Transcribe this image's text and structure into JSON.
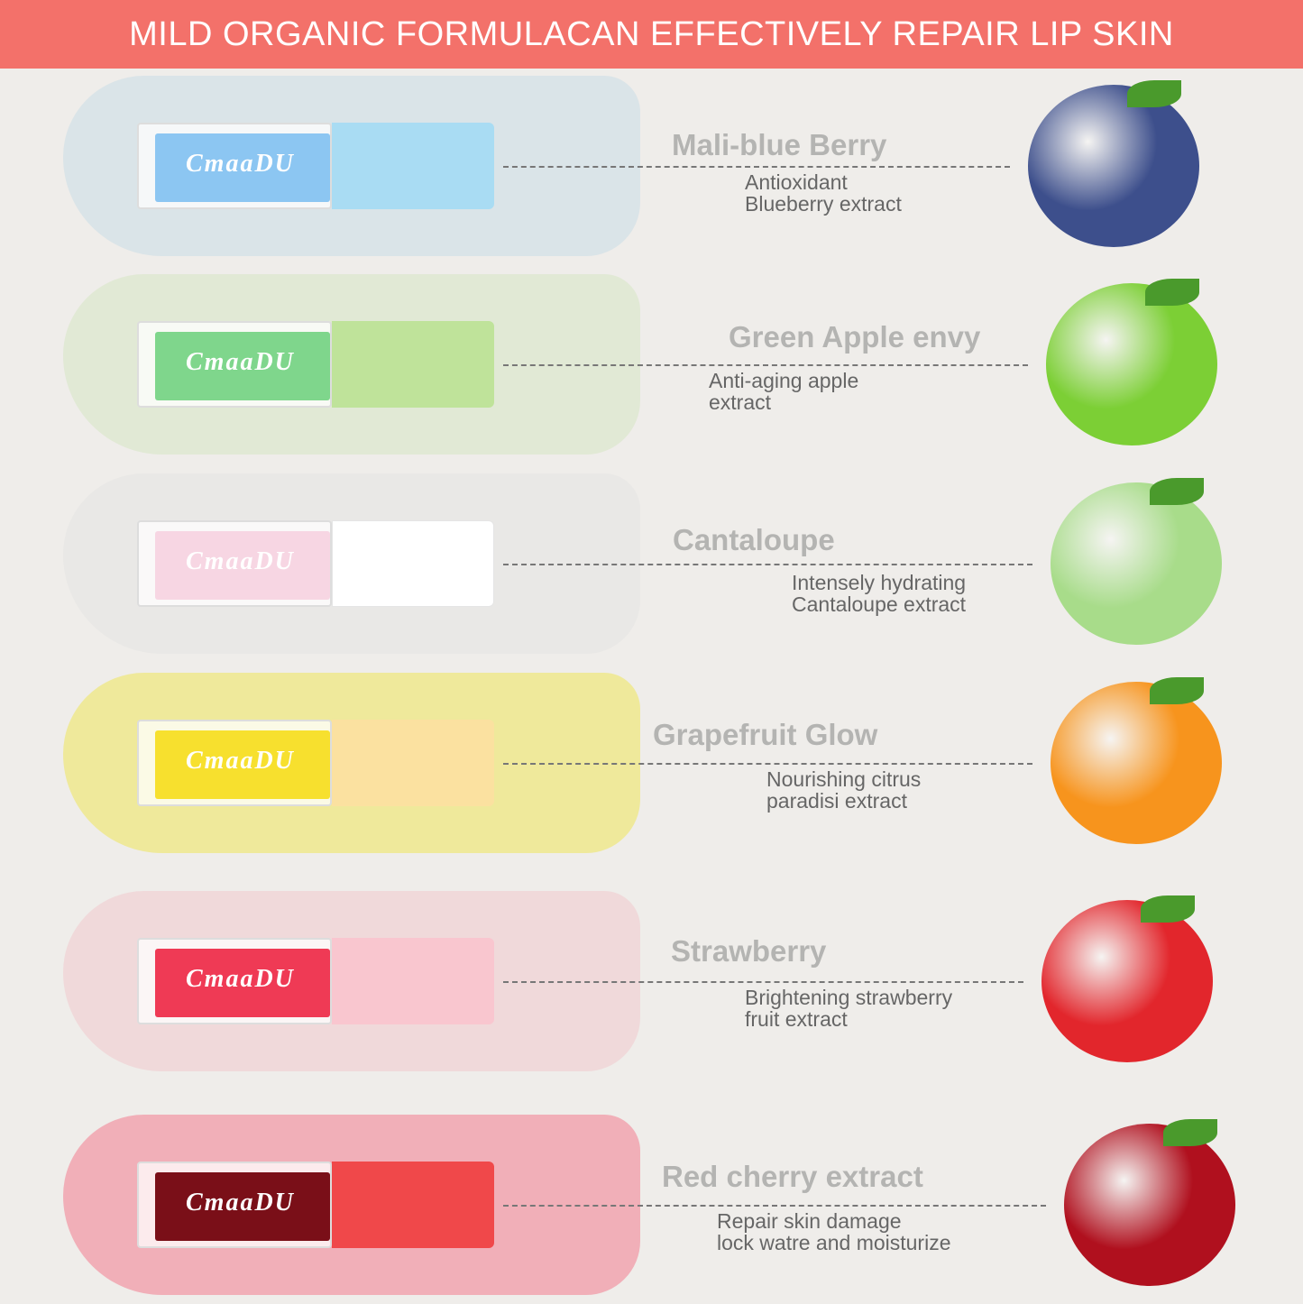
{
  "banner": {
    "title": "MILD ORGANIC FORMULACAN EFFECTIVELY REPAIR LIP SKIN",
    "bg": "#f3716a"
  },
  "brand": "CmaaDU",
  "products": [
    {
      "name": "Mali-blue Berry",
      "desc1": "Antioxidant",
      "desc2": "Blueberry extract",
      "cap": "#a9dcf3",
      "liquid": "#8cc6f2",
      "smear": "#c9dde6",
      "fruit": "#3d4f8c",
      "fruit_icon": "blueberry-icon"
    },
    {
      "name": "Green Apple envy",
      "desc1": "Anti-aging apple",
      "desc2": "extract",
      "cap": "#bfe39a",
      "liquid": "#7fd68c",
      "smear": "#d5e5c2",
      "fruit": "#7ccf35",
      "fruit_icon": "green-apple-icon"
    },
    {
      "name": "Cantaloupe",
      "desc1": "Intensely hydrating",
      "desc2": "Cantaloupe extract",
      "cap": "#ffffff",
      "liquid": "#f7d6e3",
      "smear": "#e4e4e2",
      "fruit": "#a8dc8a",
      "fruit_icon": "cantaloupe-icon"
    },
    {
      "name": "Grapefruit Glow",
      "desc1": "Nourishing citrus",
      "desc2": "paradisi extract",
      "cap": "#fbe1a0",
      "liquid": "#f7e02e",
      "smear": "#efe55a",
      "fruit": "#f7941d",
      "fruit_icon": "orange-icon"
    },
    {
      "name": "Strawberry",
      "desc1": "Brightening strawberry",
      "desc2": "fruit extract",
      "cap": "#f9c6cf",
      "liquid": "#ef3a55",
      "smear": "#f1c9cc",
      "fruit": "#e2262c",
      "fruit_icon": "strawberry-icon"
    },
    {
      "name": "Red cherry extract",
      "desc1": "Repair skin damage",
      "desc2": "lock watre and moisturize",
      "cap": "#f0484a",
      "liquid": "#7a0f18",
      "smear": "#f37c8e",
      "fruit": "#b0101e",
      "fruit_icon": "cherry-icon"
    }
  ]
}
